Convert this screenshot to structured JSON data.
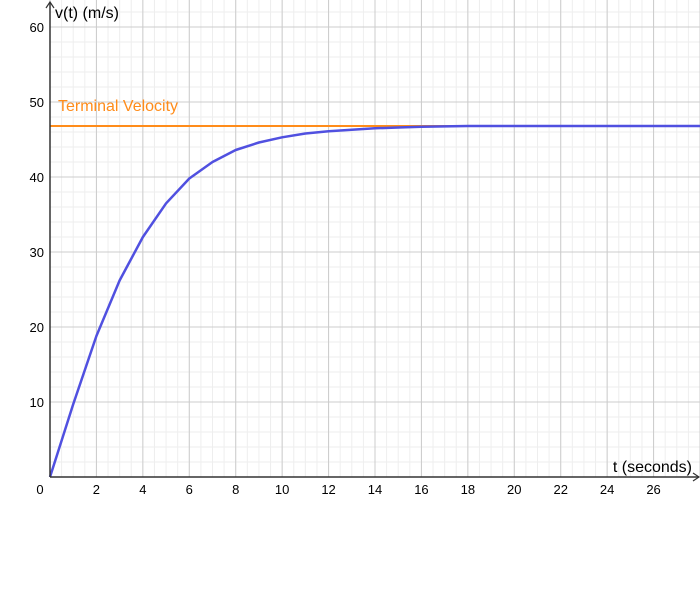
{
  "chart_data": {
    "type": "line",
    "xlabel": "t (seconds)",
    "ylabel": "v(t) (m/s)",
    "xlim": [
      0,
      28
    ],
    "ylim": [
      0,
      60
    ],
    "x_ticks": [
      0,
      2,
      4,
      6,
      8,
      10,
      12,
      14,
      16,
      18,
      20,
      22,
      24,
      26
    ],
    "y_ticks": [
      10,
      20,
      30,
      40,
      50,
      60
    ],
    "grid": true,
    "series": [
      {
        "color": "#5050e0",
        "x": [
          0,
          1,
          2,
          3,
          4,
          5,
          6,
          7,
          8,
          9,
          10,
          11,
          12,
          13,
          14,
          15,
          16,
          17,
          18,
          19,
          20,
          21,
          22,
          23,
          24,
          25,
          26,
          27,
          28
        ],
        "y": [
          0,
          9.7,
          18.8,
          26.2,
          32.0,
          36.5,
          39.8,
          42.0,
          43.6,
          44.6,
          45.3,
          45.8,
          46.1,
          46.3,
          46.5,
          46.6,
          46.7,
          46.75,
          46.8,
          46.8,
          46.8,
          46.8,
          46.8,
          46.8,
          46.8,
          46.8,
          46.8,
          46.8,
          46.8
        ]
      }
    ],
    "annotations": [
      {
        "type": "hline",
        "y": 46.8,
        "label": "Terminal Velocity",
        "color": "#ff8c1a"
      }
    ]
  }
}
